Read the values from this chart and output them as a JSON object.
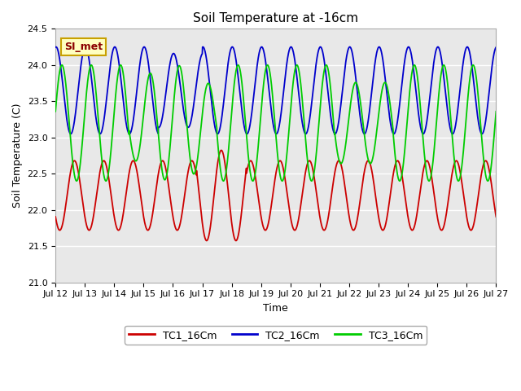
{
  "title": "Soil Temperature at -16cm",
  "xlabel": "Time",
  "ylabel": "Soil Temperature (C)",
  "ylim": [
    21.0,
    24.5
  ],
  "background_color": "#ffffff",
  "plot_bg_color": "#e8e8e8",
  "grid_color": "#ffffff",
  "legend_label_tc1": "TC1_16Cm",
  "legend_label_tc2": "TC2_16Cm",
  "legend_label_tc3": "TC3_16Cm",
  "color_tc1": "#cc0000",
  "color_tc2": "#0000cc",
  "color_tc3": "#00cc00",
  "annotation_text": "SI_met",
  "annotation_color": "#8b0000",
  "annotation_bg": "#ffffc0",
  "annotation_border": "#c8a000",
  "xtick_labels": [
    "Jul 12",
    "Jul 13",
    "Jul 14",
    "Jul 15",
    "Jul 16",
    "Jul 17",
    "Jul 18",
    "Jul 19",
    "Jul 20",
    "Jul 21",
    "Jul 22",
    "Jul 23",
    "Jul 24",
    "Jul 25",
    "Jul 26",
    "Jul 27"
  ],
  "n_days": 15,
  "tc1_mean": 22.2,
  "tc1_amp": 0.48,
  "tc1_period": 1.0,
  "tc1_phase": 3.8,
  "tc2_mean": 23.65,
  "tc2_amp": 0.6,
  "tc2_period": 1.0,
  "tc2_phase": 1.45,
  "tc3_mean": 23.2,
  "tc3_amp_base": 0.8,
  "tc3_period": 1.0,
  "tc3_phase": 0.2
}
